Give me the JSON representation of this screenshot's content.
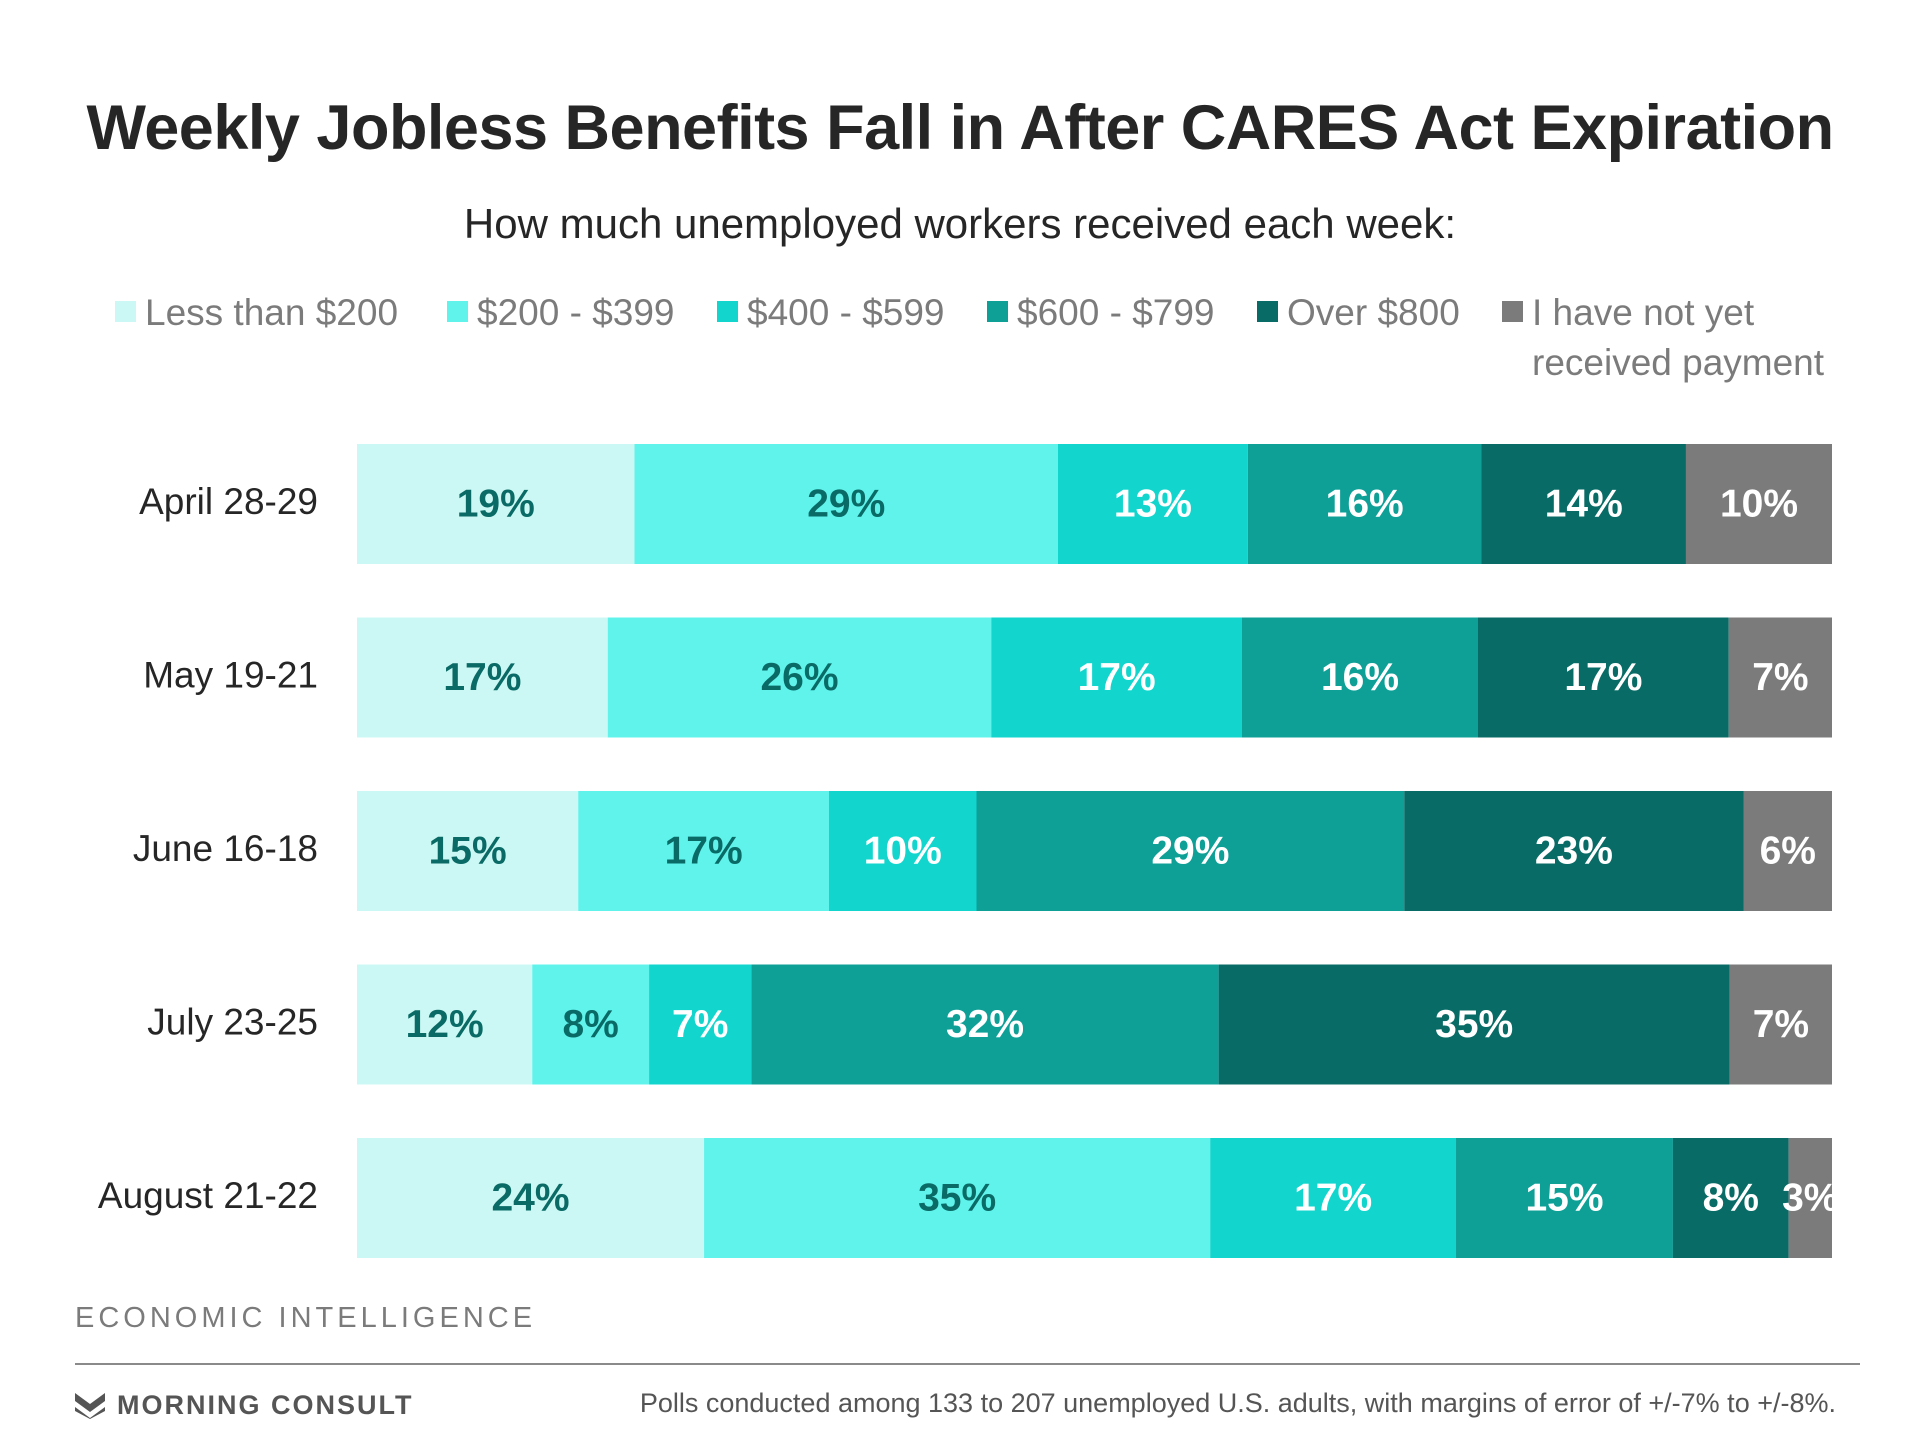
{
  "header": {
    "title": "Weekly Jobless Benefits Fall in After CARES Act Expiration",
    "subtitle": "How much unemployed workers received each week:"
  },
  "colors": {
    "less_than_200": "#cbf8f4",
    "r200_399": "#5ff3ec",
    "r400_599": "#12d6cd",
    "r600_799": "#0e9f97",
    "over_800": "#096b66",
    "not_yet_received": "#7b7b7b"
  },
  "chart_data": {
    "type": "bar",
    "orientation": "horizontal",
    "stacked": true,
    "title": "Weekly Jobless Benefits Fall in After CARES Act Expiration",
    "subtitle": "How much unemployed workers received each week:",
    "categories": [
      "April 28-29",
      "May 19-21",
      "June 16-18",
      "July 23-25",
      "August 21-22"
    ],
    "series": [
      {
        "name": "Less than $200",
        "color": "#cbf8f4",
        "label_color": "#0a6a66",
        "values": [
          19,
          17,
          15,
          12,
          24
        ]
      },
      {
        "name": "$200 - $399",
        "color": "#5ff3ec",
        "label_color": "#0a6a66",
        "values": [
          29,
          26,
          17,
          8,
          35
        ]
      },
      {
        "name": "$400 - $599",
        "color": "#12d6cd",
        "label_color": "#ffffff",
        "values": [
          13,
          17,
          10,
          7,
          17
        ]
      },
      {
        "name": "$600 - $799",
        "color": "#0e9f97",
        "label_color": "#ffffff",
        "values": [
          16,
          16,
          29,
          32,
          15
        ]
      },
      {
        "name": "Over $800",
        "color": "#096b66",
        "label_color": "#ffffff",
        "values": [
          14,
          17,
          23,
          35,
          8
        ]
      },
      {
        "name": "I have not yet received payment",
        "color": "#7b7b7b",
        "label_color": "#ffffff",
        "values": [
          10,
          7,
          6,
          7,
          3
        ]
      }
    ],
    "value_suffix": "%",
    "legend_position": "top",
    "grid": false
  },
  "footer": {
    "section": "ECONOMIC INTELLIGENCE",
    "brand": "MORNING CONSULT",
    "note": "Polls conducted among 133 to 207 unemployed U.S. adults, with margins of error of +/-7% to +/-8%."
  }
}
